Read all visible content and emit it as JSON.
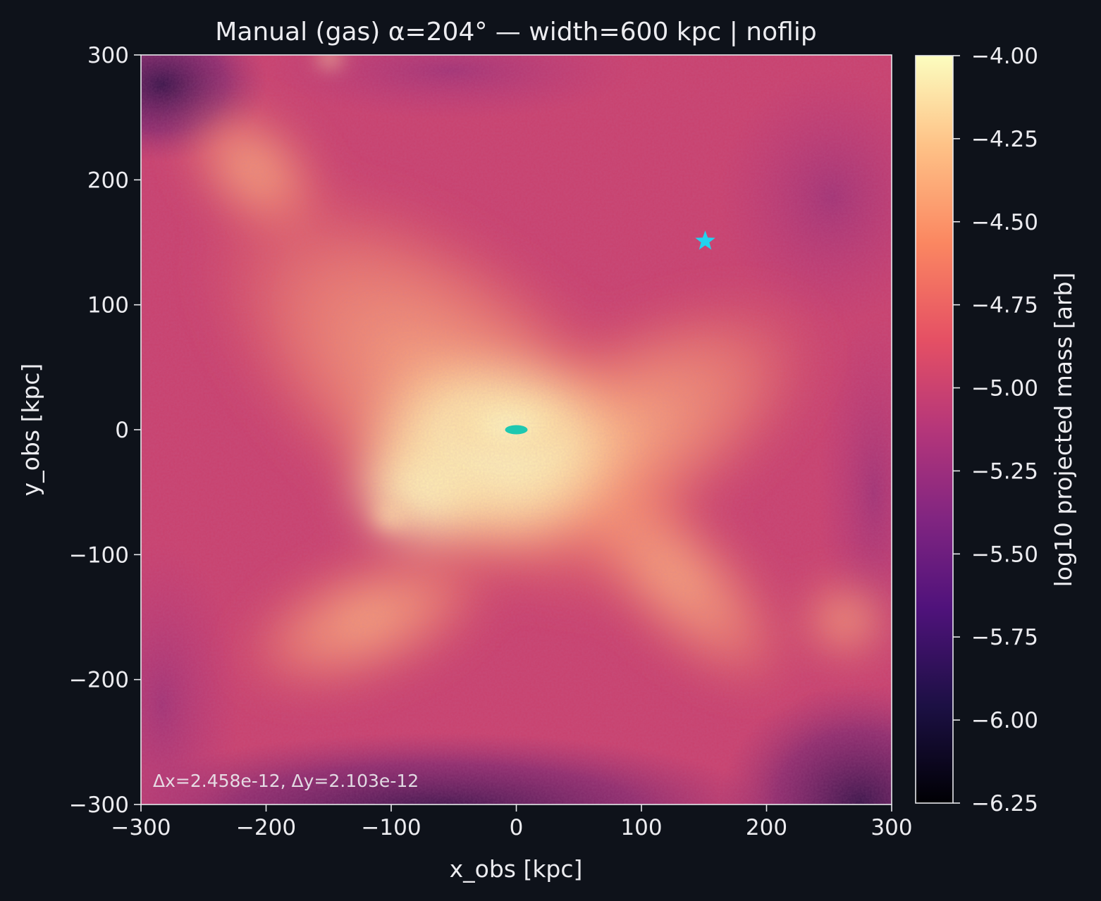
{
  "chart_data": {
    "type": "heatmap",
    "title": "Manual (gas)  α=204° — width=600 kpc | noflip",
    "xlabel": "x_obs [kpc]",
    "ylabel": "y_obs [kpc]",
    "xlim": [
      -300,
      300
    ],
    "ylim": [
      -300,
      300
    ],
    "x_ticks": [
      -300,
      -200,
      -100,
      0,
      100,
      200,
      300
    ],
    "y_ticks": [
      -300,
      -200,
      -100,
      0,
      100,
      200,
      300
    ],
    "x_tick_labels": [
      "−300",
      "−200",
      "−100",
      "0",
      "100",
      "200",
      "300"
    ],
    "y_tick_labels": [
      "−300",
      "−200",
      "−100",
      "0",
      "100",
      "200",
      "300"
    ],
    "colormap": "magma",
    "colorbar": {
      "label": "log10 projected mass [arb]",
      "range": [
        -6.25,
        -4.0
      ],
      "ticks": [
        -4.0,
        -4.25,
        -4.5,
        -4.75,
        -5.0,
        -5.25,
        -5.5,
        -5.75,
        -6.0,
        -6.25
      ],
      "tick_labels": [
        "−4.00",
        "−4.25",
        "−4.50",
        "−4.75",
        "−5.00",
        "−5.25",
        "−5.50",
        "−5.75",
        "−6.00",
        "−6.25"
      ]
    },
    "annotation": "Δx=2.458e-12, Δy=2.103e-12",
    "markers": [
      {
        "shape": "star",
        "x": 151,
        "y": 151,
        "color": "#22d3ee"
      },
      {
        "shape": "ellipse",
        "x": 0,
        "y": 0,
        "color": "#1ec8b0"
      }
    ],
    "features": [
      {
        "x": 0,
        "y": 0,
        "level": -4.0,
        "desc": "central core"
      },
      {
        "x": -100,
        "y": -68,
        "level": -4.1,
        "desc": "satellite"
      },
      {
        "x": -150,
        "y": 300,
        "level": -4.1,
        "desc": "satellite"
      }
    ],
    "grid": false
  }
}
